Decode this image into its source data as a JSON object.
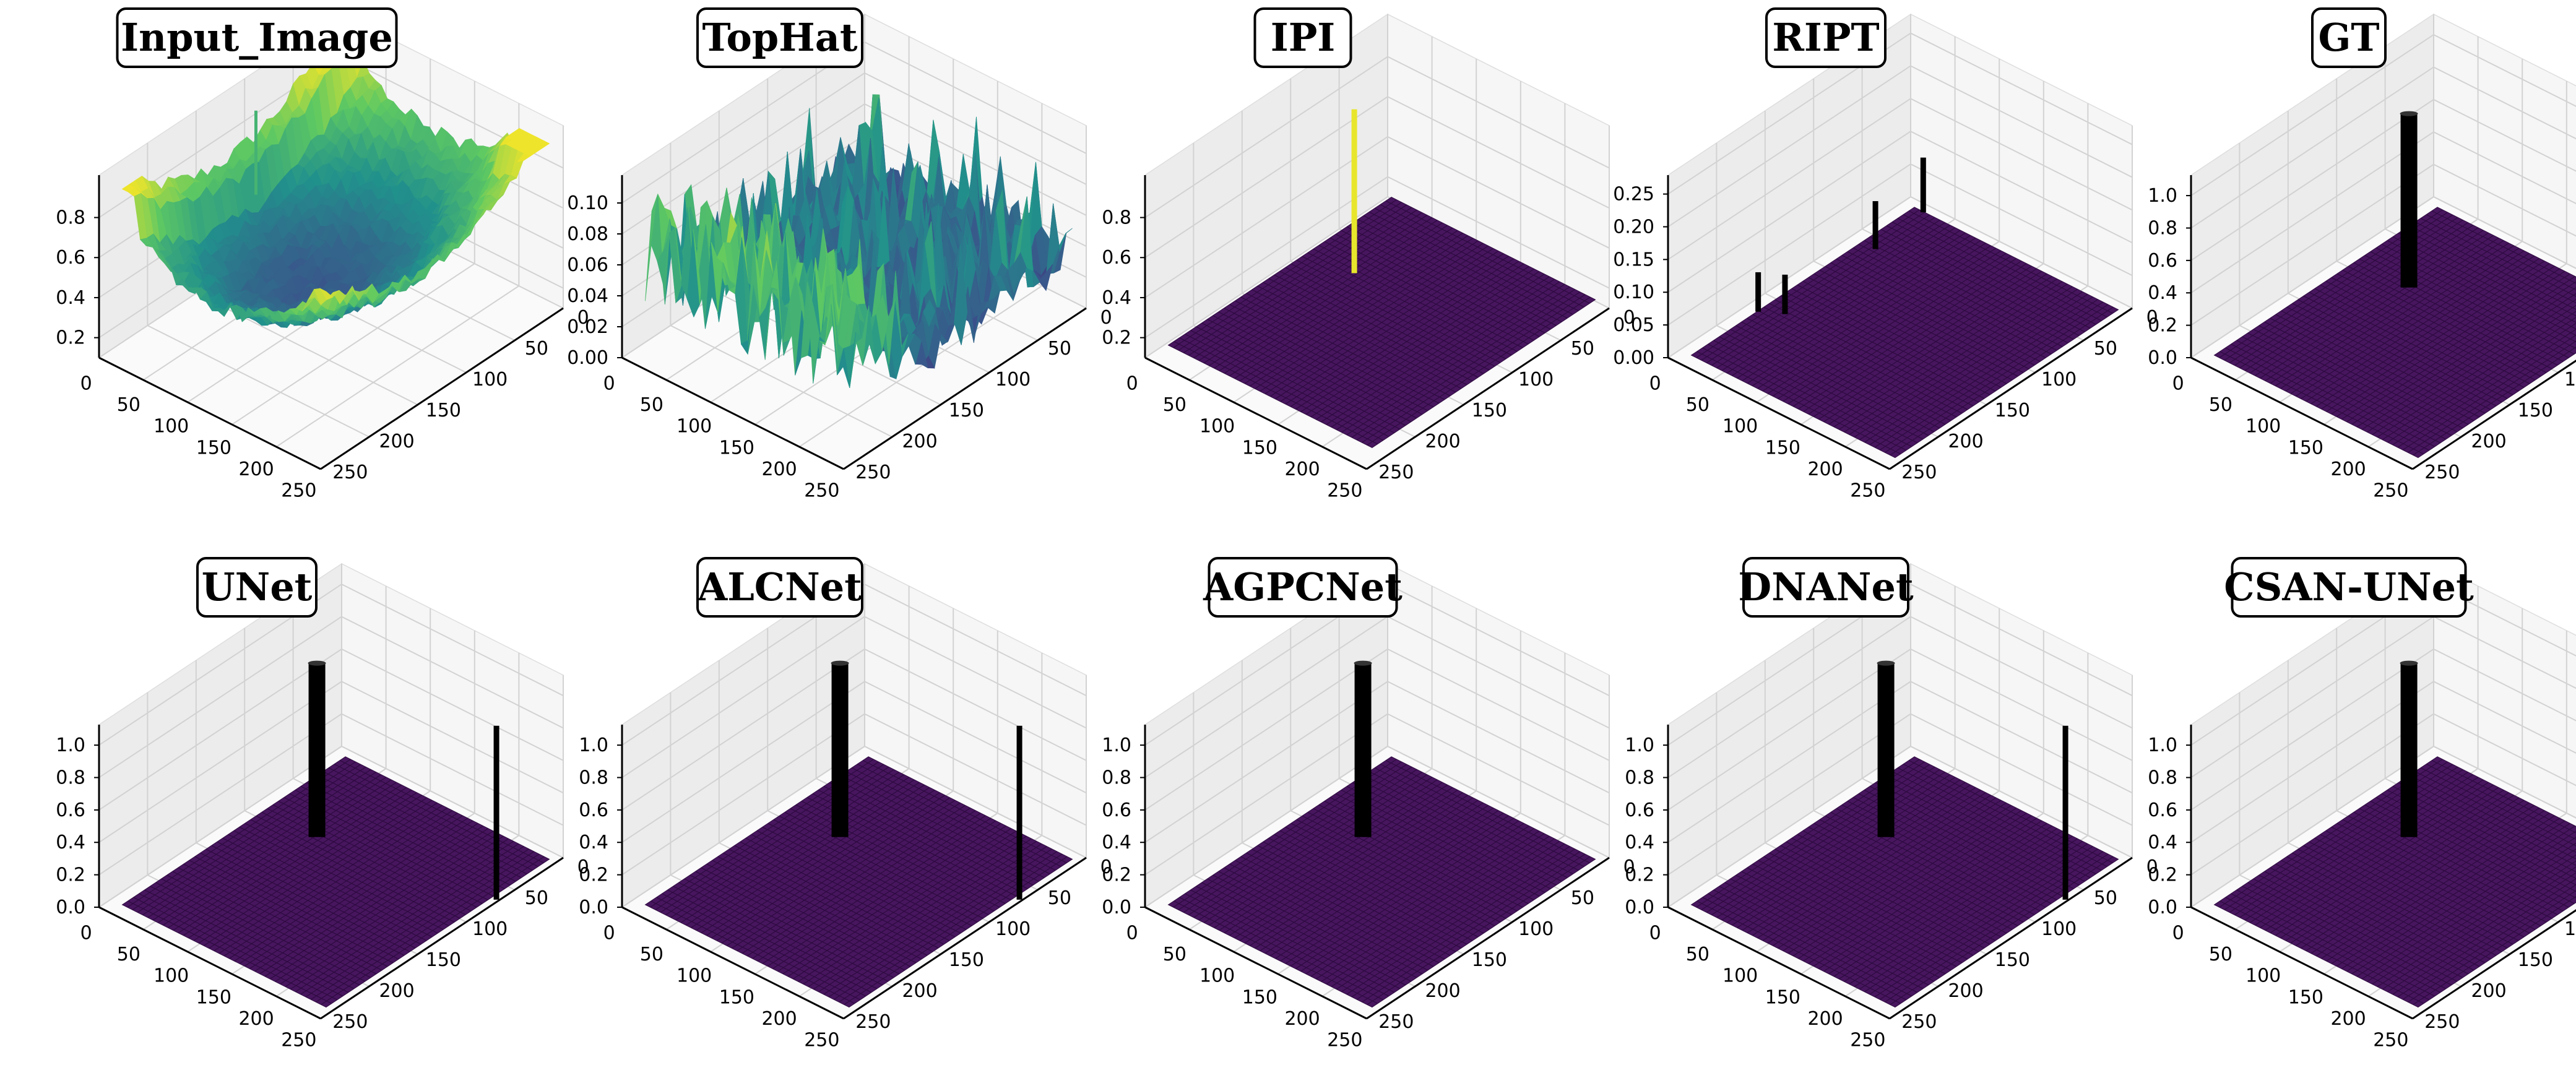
{
  "figure": {
    "panel_count": 10,
    "layout": "2 rows x 5 columns"
  },
  "colors": {
    "floor": "#47165e",
    "floor_mesh": "#2e0a40",
    "spike": "#000000",
    "ipi_spike": "#e8e62c",
    "pane_left": "#ececec",
    "pane_right": "#f6f6f6",
    "pane_floor": "#fafafa",
    "viridis": [
      "#440154",
      "#3b528b",
      "#21918c",
      "#5ec962",
      "#fde725"
    ]
  },
  "chart_data": [
    {
      "id": "p1",
      "title": "Input_Image",
      "type": "surface3d",
      "surface": "rough_bowl",
      "x_ticks": [
        "0",
        "50",
        "100",
        "150",
        "200",
        "250"
      ],
      "y_ticks": [
        "0",
        "50",
        "100",
        "150",
        "200",
        "250"
      ],
      "z_ticks": [
        "0.2",
        "0.4",
        "0.6",
        "0.8"
      ],
      "zlim": [
        0.1,
        0.95
      ],
      "spikes": []
    },
    {
      "id": "p2",
      "title": "TopHat",
      "type": "surface3d",
      "surface": "noisy",
      "x_ticks": [
        "0",
        "50",
        "100",
        "150",
        "200",
        "250"
      ],
      "y_ticks": [
        "0",
        "50",
        "100",
        "150",
        "200",
        "250"
      ],
      "z_ticks": [
        "0.00",
        "0.02",
        "0.04",
        "0.06",
        "0.08",
        "0.10"
      ],
      "zlim": [
        0,
        0.11
      ],
      "spikes": []
    },
    {
      "id": "p3",
      "title": "IPI",
      "type": "surface3d",
      "surface": "flat",
      "floor_value": 0.15,
      "x_ticks": [
        "0",
        "50",
        "100",
        "150",
        "200",
        "250"
      ],
      "y_ticks": [
        "0",
        "50",
        "100",
        "150",
        "200",
        "250"
      ],
      "z_ticks": [
        "0.2",
        "0.4",
        "0.6",
        "0.8"
      ],
      "zlim": [
        0.1,
        0.95
      ],
      "spikes": [
        {
          "x": 60,
          "y": 90,
          "height": 1.0,
          "color": "ipi"
        }
      ]
    },
    {
      "id": "p4",
      "title": "RIPT",
      "type": "surface3d",
      "surface": "flat",
      "floor_value": 0,
      "x_ticks": [
        "0",
        "50",
        "100",
        "150",
        "200",
        "250"
      ],
      "y_ticks": [
        "0",
        "50",
        "100",
        "150",
        "200",
        "250"
      ],
      "z_ticks": [
        "0.00",
        "0.05",
        "0.10",
        "0.15",
        "0.20",
        "0.25"
      ],
      "zlim": [
        0,
        0.26
      ],
      "spikes": [
        {
          "x": 10,
          "y": 170,
          "height": 0.21
        },
        {
          "x": 30,
          "y": 160,
          "height": 0.21
        },
        {
          "x": 25,
          "y": 60,
          "height": 0.26
        },
        {
          "x": 20,
          "y": 5,
          "height": 0.3
        }
      ]
    },
    {
      "id": "p5",
      "title": "GT",
      "type": "surface3d",
      "surface": "flat",
      "floor_value": 0,
      "x_ticks": [
        "0",
        "50",
        "100",
        "150",
        "200",
        "250"
      ],
      "y_ticks": [
        "0",
        "50",
        "100",
        "150",
        "200",
        "250"
      ],
      "z_ticks": [
        "0.0",
        "0.2",
        "0.4",
        "0.6",
        "0.8",
        "1.0"
      ],
      "zlim": [
        0,
        1.05
      ],
      "spikes": [
        {
          "x": 70,
          "y": 90,
          "height": 1.0,
          "width": 3
        }
      ]
    },
    {
      "id": "p6",
      "title": "UNet",
      "type": "surface3d",
      "surface": "flat",
      "floor_value": 0,
      "x_ticks": [
        "0",
        "50",
        "100",
        "150",
        "200",
        "250"
      ],
      "y_ticks": [
        "0",
        "50",
        "100",
        "150",
        "200",
        "250"
      ],
      "z_ticks": [
        "0.0",
        "0.2",
        "0.4",
        "0.6",
        "0.8",
        "1.0"
      ],
      "zlim": [
        0,
        1.05
      ],
      "spikes": [
        {
          "x": 70,
          "y": 90,
          "height": 1.0,
          "width": 3
        },
        {
          "x": 250,
          "y": 65,
          "height": 1.0
        }
      ]
    },
    {
      "id": "p7",
      "title": "ALCNet",
      "type": "surface3d",
      "surface": "flat",
      "floor_value": 0,
      "x_ticks": [
        "0",
        "50",
        "100",
        "150",
        "200",
        "250"
      ],
      "y_ticks": [
        "0",
        "50",
        "100",
        "150",
        "200",
        "250"
      ],
      "z_ticks": [
        "0.0",
        "0.2",
        "0.4",
        "0.6",
        "0.8",
        "1.0"
      ],
      "zlim": [
        0,
        1.05
      ],
      "spikes": [
        {
          "x": 70,
          "y": 90,
          "height": 1.0,
          "width": 3
        },
        {
          "x": 250,
          "y": 65,
          "height": 1.0
        }
      ]
    },
    {
      "id": "p8",
      "title": "AGPCNet",
      "type": "surface3d",
      "surface": "flat",
      "floor_value": 0,
      "x_ticks": [
        "0",
        "50",
        "100",
        "150",
        "200",
        "250"
      ],
      "y_ticks": [
        "0",
        "50",
        "100",
        "150",
        "200",
        "250"
      ],
      "z_ticks": [
        "0.0",
        "0.2",
        "0.4",
        "0.6",
        "0.8",
        "1.0"
      ],
      "zlim": [
        0,
        1.05
      ],
      "spikes": [
        {
          "x": 70,
          "y": 90,
          "height": 1.0,
          "width": 3
        }
      ]
    },
    {
      "id": "p9",
      "title": "DNANet",
      "type": "surface3d",
      "surface": "flat",
      "floor_value": 0,
      "x_ticks": [
        "0",
        "50",
        "100",
        "150",
        "200",
        "250"
      ],
      "y_ticks": [
        "0",
        "50",
        "100",
        "150",
        "200",
        "250"
      ],
      "z_ticks": [
        "0.0",
        "0.2",
        "0.4",
        "0.6",
        "0.8",
        "1.0"
      ],
      "zlim": [
        0,
        1.05
      ],
      "spikes": [
        {
          "x": 70,
          "y": 90,
          "height": 1.0,
          "width": 3
        },
        {
          "x": 250,
          "y": 65,
          "height": 1.0
        }
      ]
    },
    {
      "id": "p10",
      "title": "CSAN-UNet",
      "type": "surface3d",
      "surface": "flat",
      "floor_value": 0,
      "x_ticks": [
        "0",
        "50",
        "100",
        "150",
        "200",
        "250"
      ],
      "y_ticks": [
        "0",
        "50",
        "100",
        "150",
        "200",
        "250"
      ],
      "z_ticks": [
        "0.0",
        "0.2",
        "0.4",
        "0.6",
        "0.8",
        "1.0"
      ],
      "zlim": [
        0,
        1.05
      ],
      "spikes": [
        {
          "x": 70,
          "y": 90,
          "height": 1.0,
          "width": 3
        }
      ]
    }
  ]
}
